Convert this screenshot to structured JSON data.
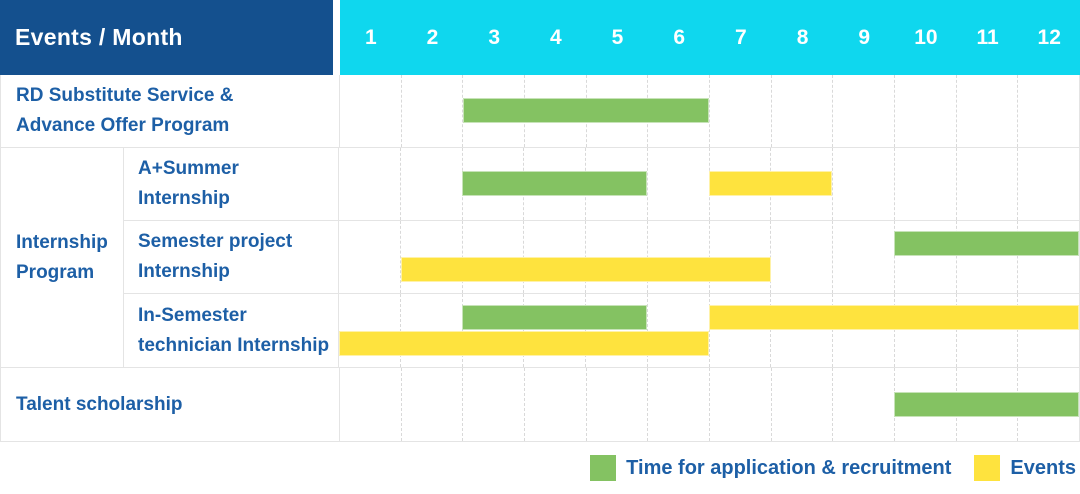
{
  "colors": {
    "corner_bg": "#14508E",
    "month_header_bg": "#0FD7EE",
    "header_text": "#FFFFFF",
    "label_text": "#1D5FA6",
    "grid_border": "#E4E4E4",
    "month_divider": "#D9D9D9",
    "application_green": "#84C262",
    "events_yellow": "#FEE33E"
  },
  "header": {
    "corner_label": "Events / Month",
    "months": [
      "1",
      "2",
      "3",
      "4",
      "5",
      "6",
      "7",
      "8",
      "9",
      "10",
      "11",
      "12"
    ]
  },
  "chart_data": {
    "type": "gantt",
    "title": "Events / Month",
    "x_axis": {
      "unit": "month",
      "ticks": [
        1,
        2,
        3,
        4,
        5,
        6,
        7,
        8,
        9,
        10,
        11,
        12
      ],
      "range": [
        1,
        12
      ]
    },
    "grid": true,
    "legend_position": "bottom-right",
    "series_legend": [
      {
        "key": "application",
        "label": "Time for application & recruitment",
        "color": "#84C262"
      },
      {
        "key": "events",
        "label": "Events",
        "color": "#FEE33E"
      }
    ],
    "group_label": "Internship Program",
    "group_label_lines": [
      "Internship",
      "Program"
    ],
    "rows": [
      {
        "group": "",
        "label": "RD Substitute Service & Advance Offer Program",
        "label_lines": [
          "RD Substitute Service &",
          "Advance Offer Program"
        ],
        "lines": [
          [
            {
              "series": "application",
              "start_month": 3,
              "end_month": 6
            }
          ]
        ]
      },
      {
        "group": "Internship Program",
        "label": "A+Summer Internship",
        "label_lines": [
          "A+Summer",
          "Internship"
        ],
        "lines": [
          [
            {
              "series": "application",
              "start_month": 3,
              "end_month": 5
            },
            {
              "series": "events",
              "start_month": 7,
              "end_month": 8
            }
          ]
        ]
      },
      {
        "group": "Internship Program",
        "label": "Semester project Internship",
        "label_lines": [
          "Semester project",
          "Internship"
        ],
        "lines": [
          [
            {
              "series": "application",
              "start_month": 10,
              "end_month": 12
            }
          ],
          [
            {
              "series": "events",
              "start_month": 2,
              "end_month": 7
            }
          ]
        ]
      },
      {
        "group": "Internship Program",
        "label": "In-Semester technician Internship",
        "label_lines": [
          "In-Semester",
          "technician Internship"
        ],
        "lines": [
          [
            {
              "series": "application",
              "start_month": 3,
              "end_month": 5
            },
            {
              "series": "events",
              "start_month": 7,
              "end_month": 12
            }
          ],
          [
            {
              "series": "events",
              "start_month": 1,
              "end_month": 6
            }
          ]
        ]
      },
      {
        "group": "",
        "label": "Talent scholarship",
        "label_lines": [
          "Talent scholarship"
        ],
        "lines": [
          [
            {
              "series": "application",
              "start_month": 10,
              "end_month": 12
            }
          ]
        ]
      }
    ]
  }
}
